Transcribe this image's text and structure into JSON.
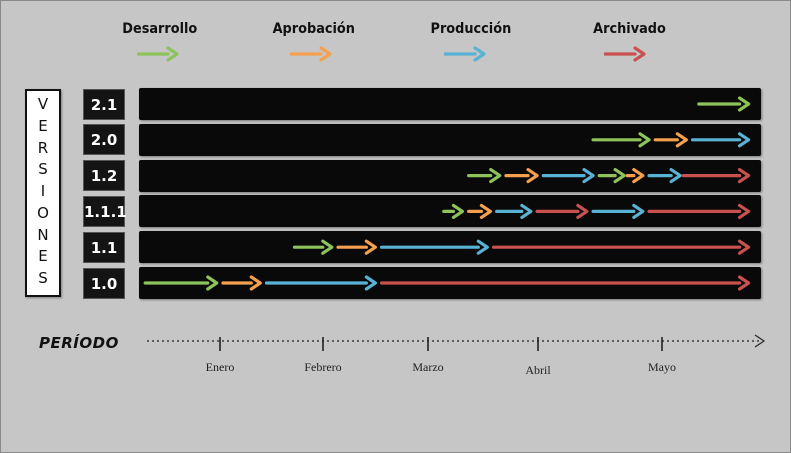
{
  "colors": {
    "desarrollo": "#8dc35a",
    "aprobacion": "#f5a04f",
    "produccion": "#58b2d4",
    "archivado": "#c9514f"
  },
  "legend": [
    {
      "key": "desarrollo",
      "label": "Desarrollo"
    },
    {
      "key": "aprobacion",
      "label": "Aprobación"
    },
    {
      "key": "produccion",
      "label": "Producción"
    },
    {
      "key": "archivado",
      "label": "Archivado"
    }
  ],
  "axis_title": "VERSIONES",
  "period_label": "PERÍODO",
  "months": [
    "Enero",
    "Febrero",
    "Marzo",
    "Abril",
    "Mayo"
  ],
  "versions": [
    {
      "label": "2.1",
      "phases": [
        {
          "stage": "desarrollo",
          "start": 0.9,
          "end": 0.98
        }
      ]
    },
    {
      "label": "2.0",
      "phases": [
        {
          "stage": "desarrollo",
          "start": 0.73,
          "end": 0.82
        },
        {
          "stage": "aprobacion",
          "start": 0.83,
          "end": 0.88
        },
        {
          "stage": "produccion",
          "start": 0.89,
          "end": 0.98
        }
      ]
    },
    {
      "label": "1.2",
      "phases": [
        {
          "stage": "desarrollo",
          "start": 0.53,
          "end": 0.58
        },
        {
          "stage": "aprobacion",
          "start": 0.59,
          "end": 0.64
        },
        {
          "stage": "produccion",
          "start": 0.65,
          "end": 0.73
        },
        {
          "stage": "desarrollo",
          "start": 0.74,
          "end": 0.78
        },
        {
          "stage": "aprobacion",
          "start": 0.785,
          "end": 0.81
        },
        {
          "stage": "produccion",
          "start": 0.82,
          "end": 0.87
        },
        {
          "stage": "archivado",
          "start": 0.875,
          "end": 0.98
        }
      ]
    },
    {
      "label": "1.1.1",
      "phases": [
        {
          "stage": "desarrollo",
          "start": 0.49,
          "end": 0.52
        },
        {
          "stage": "aprobacion",
          "start": 0.53,
          "end": 0.565
        },
        {
          "stage": "produccion",
          "start": 0.575,
          "end": 0.63
        },
        {
          "stage": "archivado",
          "start": 0.64,
          "end": 0.72
        },
        {
          "stage": "produccion",
          "start": 0.73,
          "end": 0.81
        },
        {
          "stage": "archivado",
          "start": 0.82,
          "end": 0.98
        }
      ]
    },
    {
      "label": "1.1",
      "phases": [
        {
          "stage": "desarrollo",
          "start": 0.25,
          "end": 0.31
        },
        {
          "stage": "aprobacion",
          "start": 0.32,
          "end": 0.38
        },
        {
          "stage": "produccion",
          "start": 0.39,
          "end": 0.56
        },
        {
          "stage": "archivado",
          "start": 0.57,
          "end": 0.98
        }
      ]
    },
    {
      "label": "1.0",
      "phases": [
        {
          "stage": "desarrollo",
          "start": 0.01,
          "end": 0.125
        },
        {
          "stage": "aprobacion",
          "start": 0.135,
          "end": 0.195
        },
        {
          "stage": "produccion",
          "start": 0.205,
          "end": 0.38
        },
        {
          "stage": "archivado",
          "start": 0.39,
          "end": 0.98
        }
      ]
    }
  ]
}
